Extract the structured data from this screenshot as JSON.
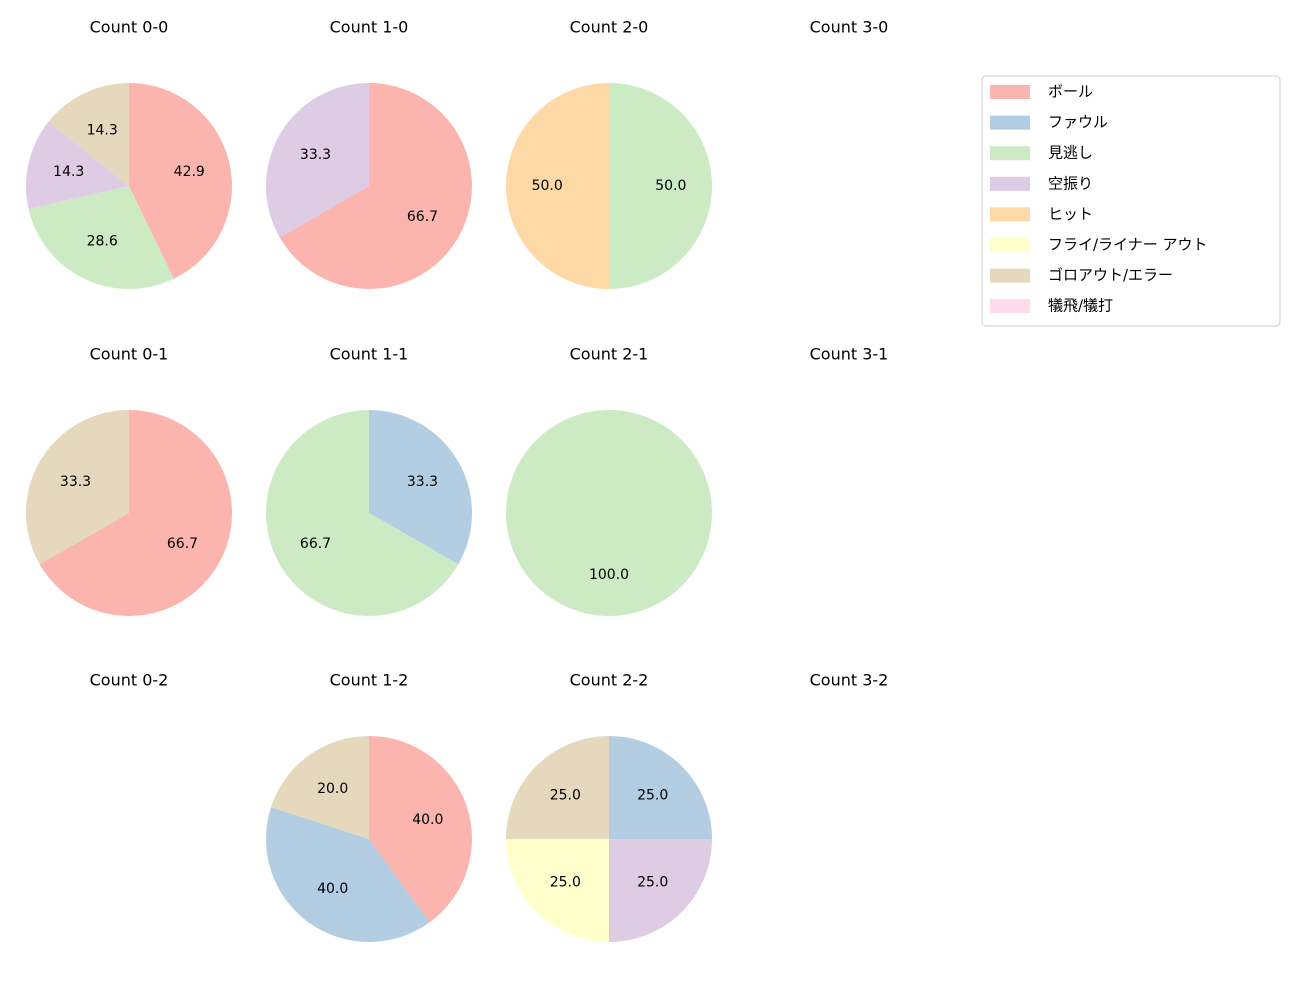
{
  "chart_data": [
    {
      "type": "pie",
      "title": "Count 0-0",
      "categories": [
        "ボール",
        "見逃し",
        "空振り",
        "ゴロアウト/エラー"
      ],
      "values": [
        42.9,
        28.6,
        14.3,
        14.3
      ],
      "value_labels": [
        "42.9",
        "28.6",
        "14.3",
        "14.3"
      ]
    },
    {
      "type": "pie",
      "title": "Count 1-0",
      "categories": [
        "ボール",
        "空振り"
      ],
      "values": [
        66.7,
        33.3
      ],
      "value_labels": [
        "66.7",
        "33.3"
      ]
    },
    {
      "type": "pie",
      "title": "Count 2-0",
      "categories": [
        "見逃し",
        "ヒット"
      ],
      "values": [
        50.0,
        50.0
      ],
      "value_labels": [
        "50.0",
        "50.0"
      ]
    },
    {
      "type": "pie",
      "title": "Count 3-0",
      "categories": [],
      "values": [],
      "value_labels": []
    },
    {
      "type": "pie",
      "title": "Count 0-1",
      "categories": [
        "ボール",
        "ゴロアウト/エラー"
      ],
      "values": [
        66.7,
        33.3
      ],
      "value_labels": [
        "66.7",
        "33.3"
      ]
    },
    {
      "type": "pie",
      "title": "Count 1-1",
      "categories": [
        "ファウル",
        "見逃し"
      ],
      "values": [
        33.3,
        66.7
      ],
      "value_labels": [
        "33.3",
        "66.7"
      ]
    },
    {
      "type": "pie",
      "title": "Count 2-1",
      "categories": [
        "見逃し"
      ],
      "values": [
        100.0
      ],
      "value_labels": [
        "100.0"
      ]
    },
    {
      "type": "pie",
      "title": "Count 3-1",
      "categories": [],
      "values": [],
      "value_labels": []
    },
    {
      "type": "pie",
      "title": "Count 0-2",
      "categories": [],
      "values": [],
      "value_labels": []
    },
    {
      "type": "pie",
      "title": "Count 1-2",
      "categories": [
        "ボール",
        "ファウル",
        "ゴロアウト/エラー"
      ],
      "values": [
        40.0,
        40.0,
        20.0
      ],
      "value_labels": [
        "40.0",
        "40.0",
        "20.0"
      ]
    },
    {
      "type": "pie",
      "title": "Count 2-2",
      "categories": [
        "ファウル",
        "空振り",
        "フライ/ライナー アウト",
        "ゴロアウト/エラー"
      ],
      "values": [
        25.0,
        25.0,
        25.0,
        25.0
      ],
      "value_labels": [
        "25.0",
        "25.0",
        "25.0",
        "25.0"
      ]
    },
    {
      "type": "pie",
      "title": "Count 3-2",
      "categories": [],
      "values": [],
      "value_labels": []
    }
  ],
  "legend": {
    "labels": [
      "ボール",
      "ファウル",
      "見逃し",
      "空振り",
      "ヒット",
      "フライ/ライナー アウト",
      "ゴロアウト/エラー",
      "犠飛/犠打"
    ],
    "colors": [
      "#fbb4ae",
      "#b3cde3",
      "#ccebc5",
      "#decbe4",
      "#fed9a6",
      "#ffffcc",
      "#e5d8bd",
      "#fddaec"
    ]
  }
}
